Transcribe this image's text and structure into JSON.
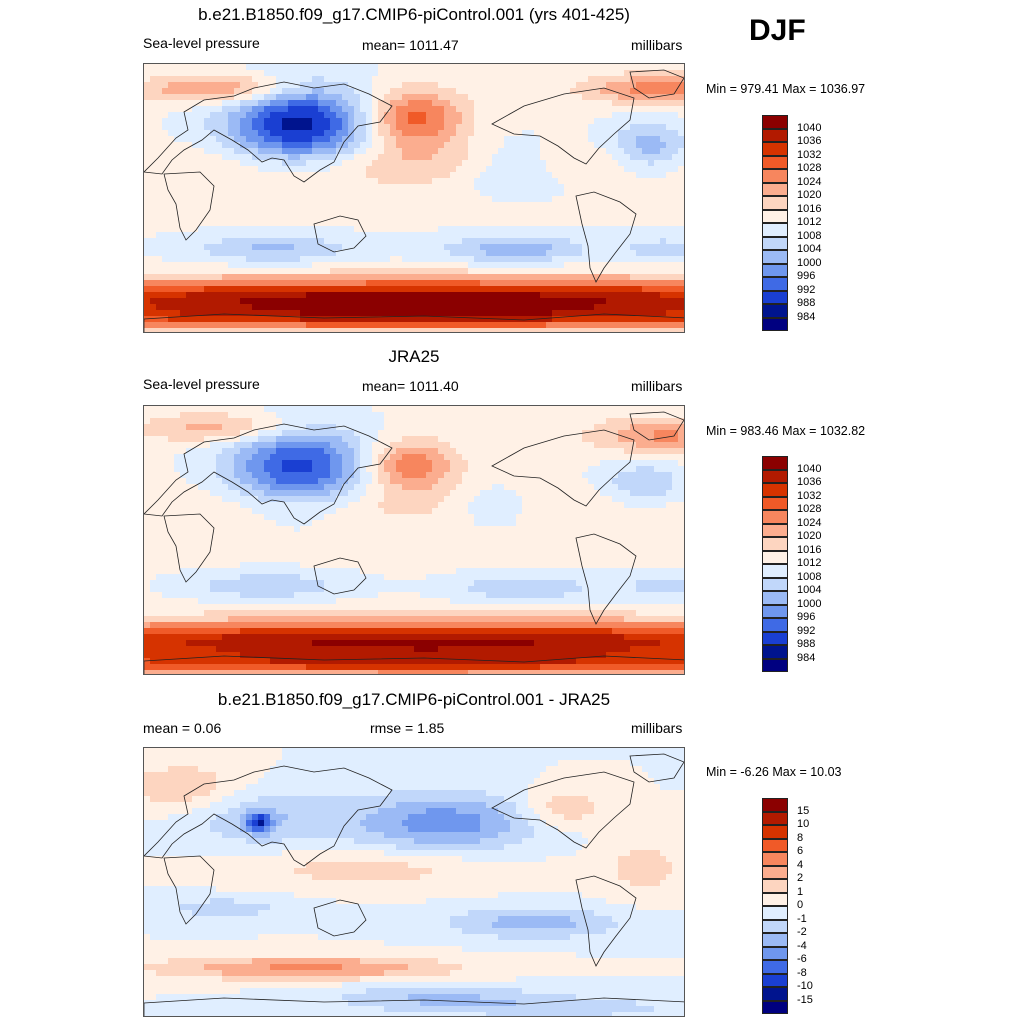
{
  "season": "DJF",
  "panels": [
    {
      "id": "model",
      "title": "b.e21.B1850.f09_g17.CMIP6-piControl.001 (yrs 401-425)",
      "left_label": "Sea-level pressure",
      "center_label": "mean= 1011.47",
      "right_label": "millibars",
      "minmax": "Min = 979.41 Max = 1036.97",
      "legend_labels": [
        "1040",
        "1036",
        "1032",
        "1028",
        "1024",
        "1020",
        "1016",
        "1012",
        "1008",
        "1004",
        "1000",
        "996",
        "992",
        "988",
        "984"
      ]
    },
    {
      "id": "obs",
      "title": "JRA25",
      "left_label": "Sea-level pressure",
      "center_label": "mean= 1011.40",
      "right_label": "millibars",
      "minmax": "Min = 983.46 Max = 1032.82",
      "legend_labels": [
        "1040",
        "1036",
        "1032",
        "1028",
        "1024",
        "1020",
        "1016",
        "1012",
        "1008",
        "1004",
        "1000",
        "996",
        "992",
        "988",
        "984"
      ]
    },
    {
      "id": "diff",
      "title": "b.e21.B1850.f09_g17.CMIP6-piControl.001 - JRA25",
      "left_label": "mean =   0.06",
      "center_label": "rmse =   1.85",
      "right_label": "millibars",
      "minmax": "Min =  -6.26 Max =  10.03",
      "legend_labels": [
        "15",
        "10",
        "8",
        "6",
        "4",
        "2",
        "1",
        "0",
        "-1",
        "-2",
        "-4",
        "-6",
        "-8",
        "-10",
        "-15"
      ]
    }
  ],
  "colors": {
    "scale": [
      "#8b0000",
      "#b21a00",
      "#d63300",
      "#f05a28",
      "#f7865e",
      "#fbad8f",
      "#fdd5c0",
      "#fff1e6",
      "#e0eeff",
      "#c1d7fa",
      "#9bbaf5",
      "#6f97ee",
      "#3f6ae5",
      "#1a3fd2",
      "#00148e",
      "#000080"
    ],
    "land_outline": "#222222"
  }
}
